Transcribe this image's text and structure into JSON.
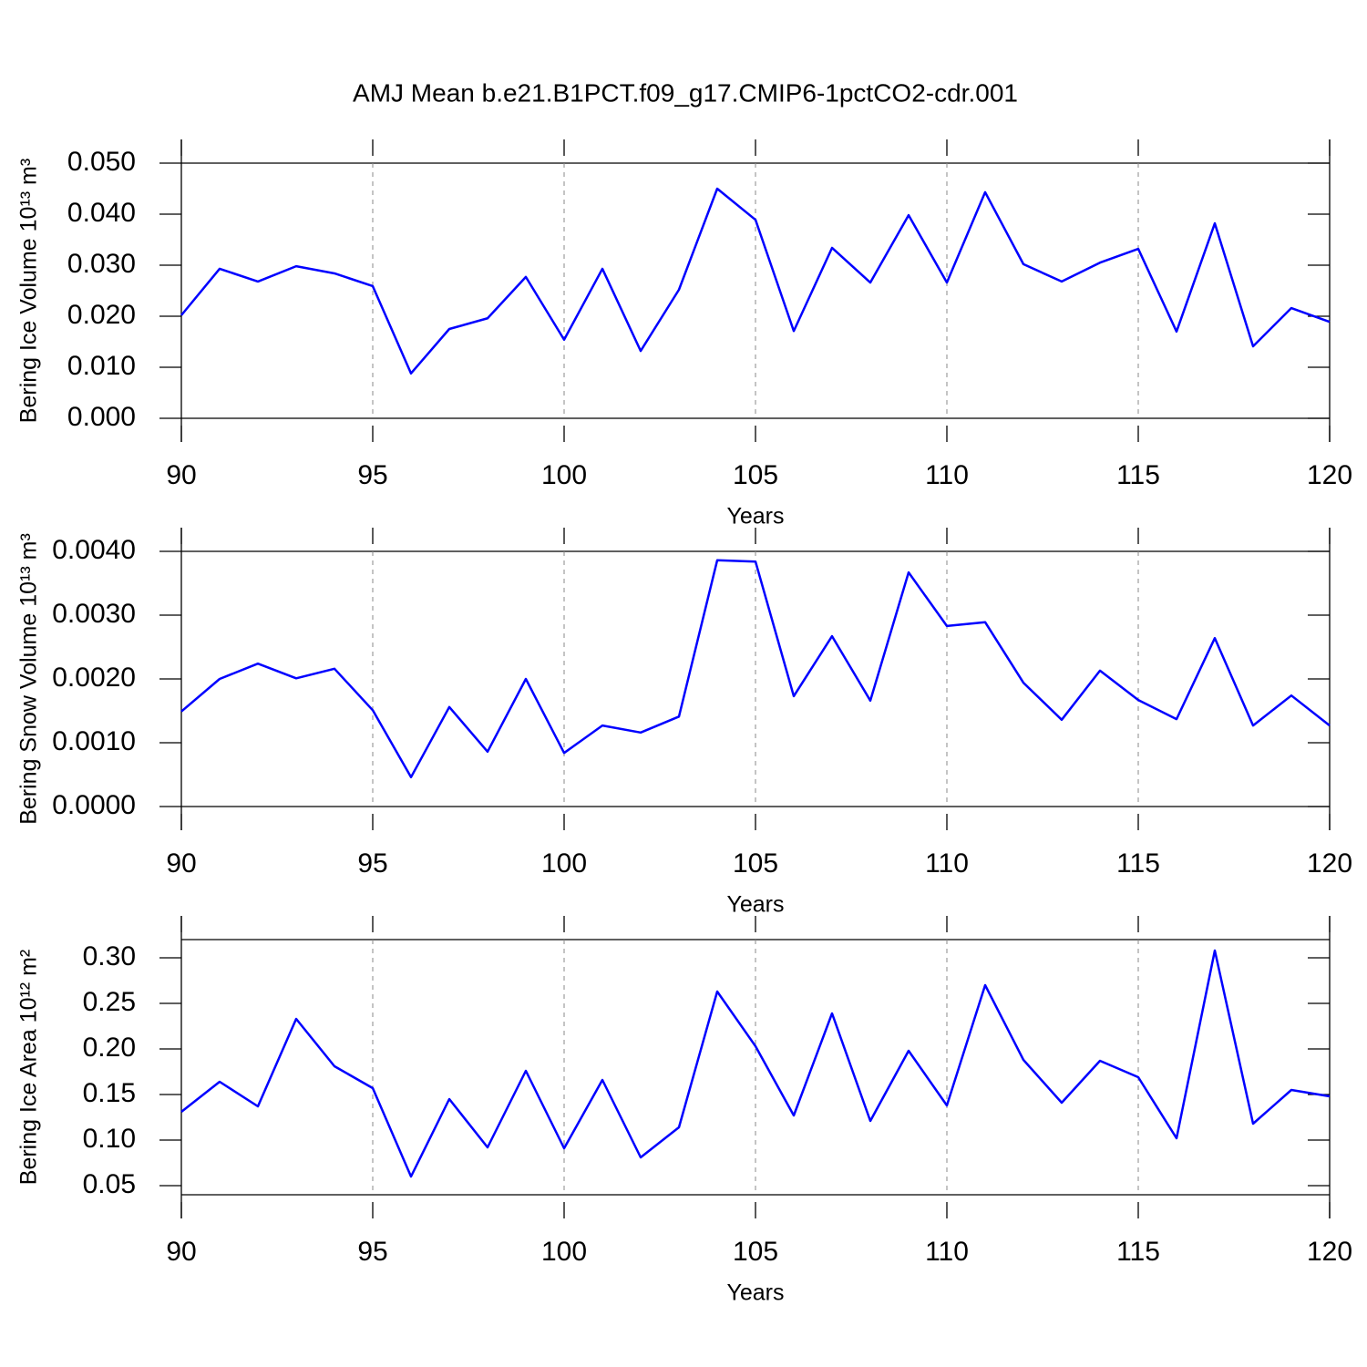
{
  "title": "AMJ Mean b.e21.B1PCT.f09_g17.CMIP6-1pctCO2-cdr.001",
  "chart_data": [
    {
      "type": "line",
      "ylabel": "Bering Ice Volume 10¹³ m³",
      "xlabel": "Years",
      "x": [
        90,
        91,
        92,
        93,
        94,
        95,
        96,
        97,
        98,
        99,
        100,
        101,
        102,
        103,
        104,
        105,
        106,
        107,
        108,
        109,
        110,
        111,
        112,
        113,
        114,
        115,
        116,
        117,
        118,
        119,
        120
      ],
      "series": [
        {
          "color": "#0000ff",
          "values": [
            0.0202,
            0.0293,
            0.0268,
            0.0298,
            0.0284,
            0.0259,
            0.0088,
            0.0175,
            0.0196,
            0.0277,
            0.0154,
            0.0293,
            0.0132,
            0.0252,
            0.045,
            0.0389,
            0.0171,
            0.0334,
            0.0266,
            0.0398,
            0.0266,
            0.0443,
            0.0302,
            0.0268,
            0.0305,
            0.0332,
            0.017,
            0.0382,
            0.0141,
            0.0216,
            0.0189
          ]
        }
      ],
      "xlim": [
        90,
        120
      ],
      "xticks": [
        90,
        95,
        100,
        105,
        110,
        115,
        120
      ],
      "ylim": [
        0,
        0.05
      ],
      "yticks": [
        {
          "value": 0,
          "label": "0.000"
        },
        {
          "value": 0.01,
          "label": "0.010"
        },
        {
          "value": 0.02,
          "label": "0.020"
        },
        {
          "value": 0.03,
          "label": "0.030"
        },
        {
          "value": 0.04,
          "label": "0.040"
        },
        {
          "value": 0.05,
          "label": "0.050"
        }
      ],
      "grid": "x-dashed"
    },
    {
      "type": "line",
      "ylabel": "Bering Snow Volume 10¹³ m³",
      "xlabel": "Years",
      "x": [
        90,
        91,
        92,
        93,
        94,
        95,
        96,
        97,
        98,
        99,
        100,
        101,
        102,
        103,
        104,
        105,
        106,
        107,
        108,
        109,
        110,
        111,
        112,
        113,
        114,
        115,
        116,
        117,
        118,
        119,
        120
      ],
      "series": [
        {
          "color": "#0000ff",
          "values": [
            0.00149,
            0.002,
            0.00224,
            0.00201,
            0.00216,
            0.00151,
            0.00046,
            0.00156,
            0.00086,
            0.002,
            0.00084,
            0.00127,
            0.00116,
            0.00141,
            0.00386,
            0.00384,
            0.00173,
            0.00267,
            0.00166,
            0.00367,
            0.00283,
            0.00289,
            0.00194,
            0.00136,
            0.00213,
            0.00167,
            0.00137,
            0.00264,
            0.00127,
            0.00174,
            0.00127
          ]
        }
      ],
      "xlim": [
        90,
        120
      ],
      "xticks": [
        90,
        95,
        100,
        105,
        110,
        115,
        120
      ],
      "ylim": [
        0,
        0.004
      ],
      "yticks": [
        {
          "value": 0,
          "label": "0.0000"
        },
        {
          "value": 0.001,
          "label": "0.0010"
        },
        {
          "value": 0.002,
          "label": "0.0020"
        },
        {
          "value": 0.003,
          "label": "0.0030"
        },
        {
          "value": 0.004,
          "label": "0.0040"
        }
      ],
      "grid": "x-dashed"
    },
    {
      "type": "line",
      "ylabel": "Bering Ice Area 10¹² m²",
      "xlabel": "Years",
      "x": [
        90,
        91,
        92,
        93,
        94,
        95,
        96,
        97,
        98,
        99,
        100,
        101,
        102,
        103,
        104,
        105,
        106,
        107,
        108,
        109,
        110,
        111,
        112,
        113,
        114,
        115,
        116,
        117,
        118,
        119,
        120
      ],
      "series": [
        {
          "color": "#0000ff",
          "values": [
            0.131,
            0.164,
            0.137,
            0.233,
            0.181,
            0.157,
            0.06,
            0.145,
            0.092,
            0.176,
            0.091,
            0.166,
            0.081,
            0.114,
            0.263,
            0.203,
            0.127,
            0.239,
            0.121,
            0.198,
            0.138,
            0.27,
            0.188,
            0.141,
            0.187,
            0.169,
            0.102,
            0.308,
            0.118,
            0.155,
            0.148
          ]
        }
      ],
      "xlim": [
        90,
        120
      ],
      "xticks": [
        90,
        95,
        100,
        105,
        110,
        115,
        120
      ],
      "ylim": [
        0.04,
        0.32
      ],
      "yticks": [
        0.05,
        {
          "value": 0.1,
          "label": "0.10"
        },
        0.15,
        {
          "value": 0.2,
          "label": "0.20"
        },
        0.25,
        {
          "value": 0.3,
          "label": "0.30"
        }
      ],
      "grid": "x-dashed"
    }
  ]
}
